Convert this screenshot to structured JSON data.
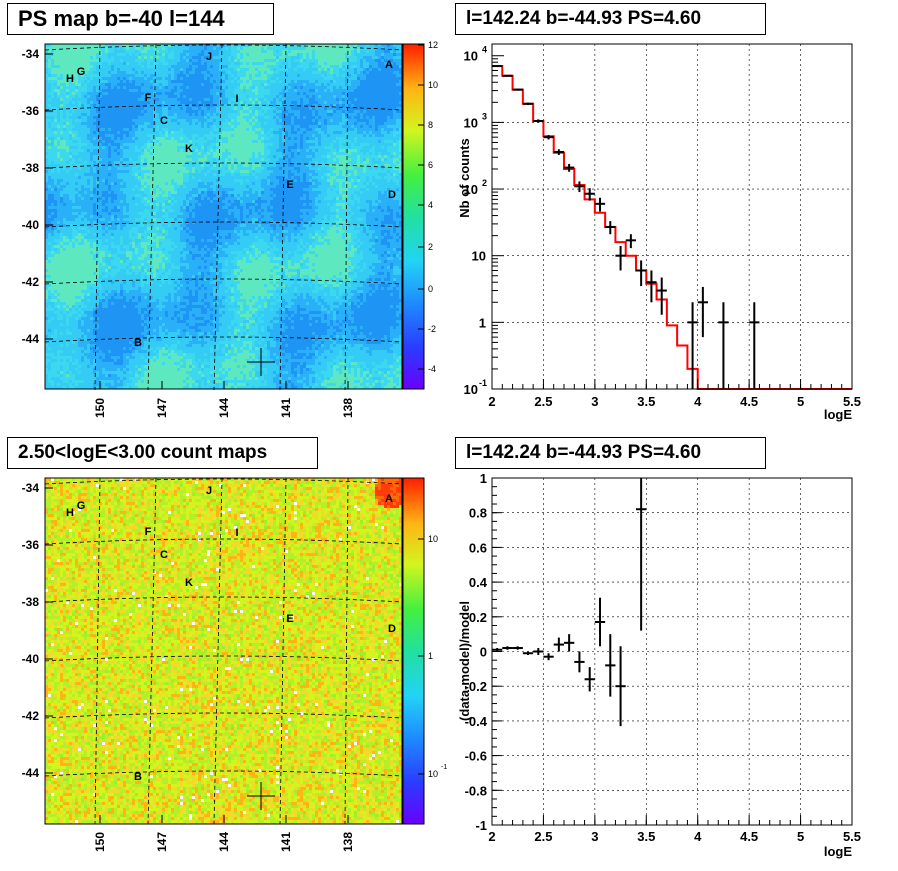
{
  "panels": {
    "ps_map_title": "PS map b=-40 l=144",
    "count_map_title": "2.50<logE<3.00 count maps",
    "spectrum_title": "l=142.24 b=-44.93 PS=4.60",
    "residual_title": "l=142.24 b=-44.93 PS=4.60"
  },
  "colors": {
    "model_line": "#ff0000",
    "data_points": "#000000"
  },
  "maps": {
    "lat_ticks": [
      "-34",
      "-36",
      "-38",
      "-40",
      "-42",
      "-44"
    ],
    "lon_ticks": [
      "150",
      "147",
      "144",
      "141",
      "138"
    ],
    "sources": [
      "A",
      "B",
      "C",
      "D",
      "E",
      "F",
      "G",
      "H",
      "I",
      "J",
      "K"
    ],
    "ps_colorbar_ticks": [
      "12",
      "10",
      "8",
      "6",
      "4",
      "2",
      "0",
      "-2",
      "-4"
    ],
    "count_colorbar_ticks": [
      "10",
      "1",
      "10"
    ],
    "count_colorbar_exp": "-1"
  },
  "chart_data": [
    {
      "type": "line",
      "name": "spectrum",
      "xlabel": "logE",
      "ylabel": "Nb of counts",
      "xlim": [
        2,
        5.5
      ],
      "ylim": [
        0.1,
        15000
      ],
      "log_y": true,
      "grid": true,
      "x_ticks": [
        "2",
        "2.5",
        "3",
        "3.5",
        "4",
        "4.5",
        "5",
        "5.5"
      ],
      "y_ticks": [
        {
          "base": "10",
          "exp": "4"
        },
        {
          "base": "10",
          "exp": "3"
        },
        {
          "base": "10",
          "exp": "2"
        },
        {
          "base": "10",
          "exp": ""
        },
        {
          "base": "1",
          "exp": ""
        },
        {
          "base": "10",
          "exp": "-1"
        }
      ],
      "series": [
        {
          "style": "step",
          "bins": [
            2.0,
            2.1,
            2.2,
            2.3,
            2.4,
            2.5,
            2.6,
            2.7,
            2.8,
            2.9,
            3.0,
            3.1,
            3.2,
            3.3,
            3.4,
            3.5,
            3.6,
            3.7,
            3.8,
            3.9,
            4.0,
            5.5
          ],
          "values": [
            7000,
            5000,
            3100,
            1900,
            1050,
            620,
            350,
            200,
            115,
            70,
            44,
            27,
            16,
            10,
            6,
            3.8,
            2.2,
            0.9,
            0.45,
            0.2,
            0.1
          ]
        },
        {
          "style": "errorbar",
          "x": [
            2.05,
            2.15,
            2.25,
            2.35,
            2.45,
            2.55,
            2.65,
            2.75,
            2.85,
            2.95,
            3.05,
            3.15,
            3.25,
            3.35,
            3.45,
            3.55,
            3.65,
            3.95,
            4.05,
            4.25,
            4.55
          ],
          "y": [
            7000,
            5000,
            3100,
            1900,
            1050,
            600,
            360,
            210,
            110,
            85,
            60,
            27,
            10,
            17,
            6,
            4,
            3,
            1,
            2,
            1,
            1
          ],
          "err_lo": [
            150,
            120,
            100,
            80,
            60,
            45,
            35,
            28,
            20,
            18,
            14,
            6,
            4,
            4,
            2.5,
            2,
            1.7,
            0.95,
            1.4,
            0.95,
            0.95
          ],
          "err_hi": [
            150,
            120,
            100,
            80,
            60,
            45,
            35,
            28,
            20,
            18,
            14,
            6,
            4,
            4,
            2.5,
            2,
            1.7,
            1,
            1.4,
            1,
            1
          ],
          "xerr": 0.05
        }
      ]
    },
    {
      "type": "scatter",
      "name": "residuals",
      "xlabel": "logE",
      "ylabel": "(data-model)/model",
      "xlim": [
        2,
        5.5
      ],
      "ylim": [
        -1,
        1
      ],
      "grid": true,
      "x_ticks": [
        "2",
        "2.5",
        "3",
        "3.5",
        "4",
        "4.5",
        "5",
        "5.5"
      ],
      "y_ticks": [
        "1",
        "0.8",
        "0.6",
        "0.4",
        "0.2",
        "0",
        "-0.2",
        "-0.4",
        "-0.6",
        "-0.8",
        "-1"
      ],
      "series": [
        {
          "style": "errorbar",
          "x": [
            2.05,
            2.15,
            2.25,
            2.35,
            2.45,
            2.55,
            2.65,
            2.75,
            2.85,
            2.95,
            3.05,
            3.15,
            3.25,
            3.45
          ],
          "y": [
            0.01,
            0.02,
            0.02,
            -0.01,
            0.0,
            -0.03,
            0.04,
            0.05,
            -0.06,
            -0.16,
            0.17,
            -0.08,
            -0.2,
            0.82
          ],
          "err": [
            0.01,
            0.01,
            0.01,
            0.01,
            0.02,
            0.02,
            0.04,
            0.05,
            0.06,
            0.07,
            0.14,
            0.18,
            0.23,
            0.7
          ],
          "xerr": 0.05
        }
      ]
    }
  ]
}
